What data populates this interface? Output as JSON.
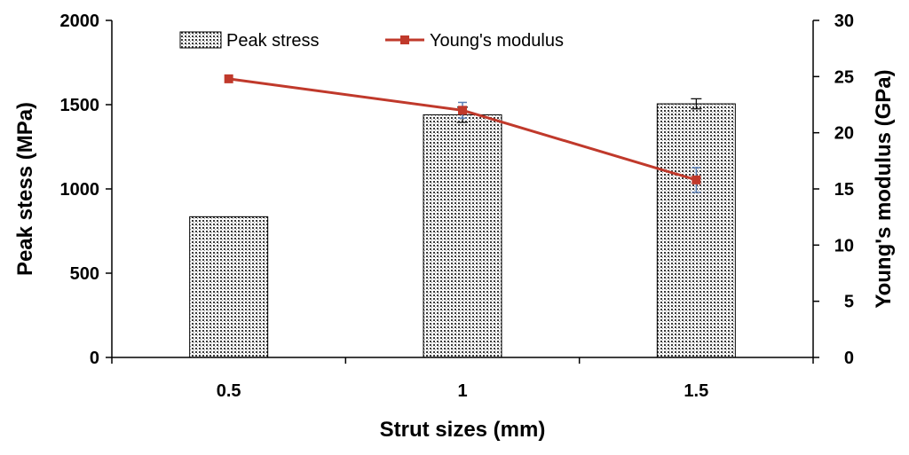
{
  "chart_data": {
    "type": "bar",
    "categories": [
      "0.5",
      "1",
      "1.5"
    ],
    "xlabel": "Strut sizes (mm)",
    "ylabel": "Peak stess (MPa)",
    "y2label": "Young's modulus (GPa)",
    "ylim": [
      0,
      2000
    ],
    "y2lim": [
      0,
      30
    ],
    "yticks": [
      "0",
      "500",
      "1000",
      "1500",
      "2000"
    ],
    "y2ticks": [
      "0",
      "5",
      "10",
      "15",
      "20",
      "25",
      "30"
    ],
    "legend_position": "top",
    "grid": false,
    "series": [
      {
        "name": "Peak stress",
        "kind": "bar",
        "axis": "left",
        "pattern": "dotted",
        "values": [
          835,
          1440,
          1505
        ],
        "error": [
          0,
          45,
          30
        ]
      },
      {
        "name": "Young's modulus",
        "kind": "line",
        "axis": "right",
        "color": "#c0392b",
        "values": [
          24.8,
          22.0,
          15.8
        ],
        "error": [
          0,
          0.7,
          1.1
        ]
      }
    ]
  }
}
